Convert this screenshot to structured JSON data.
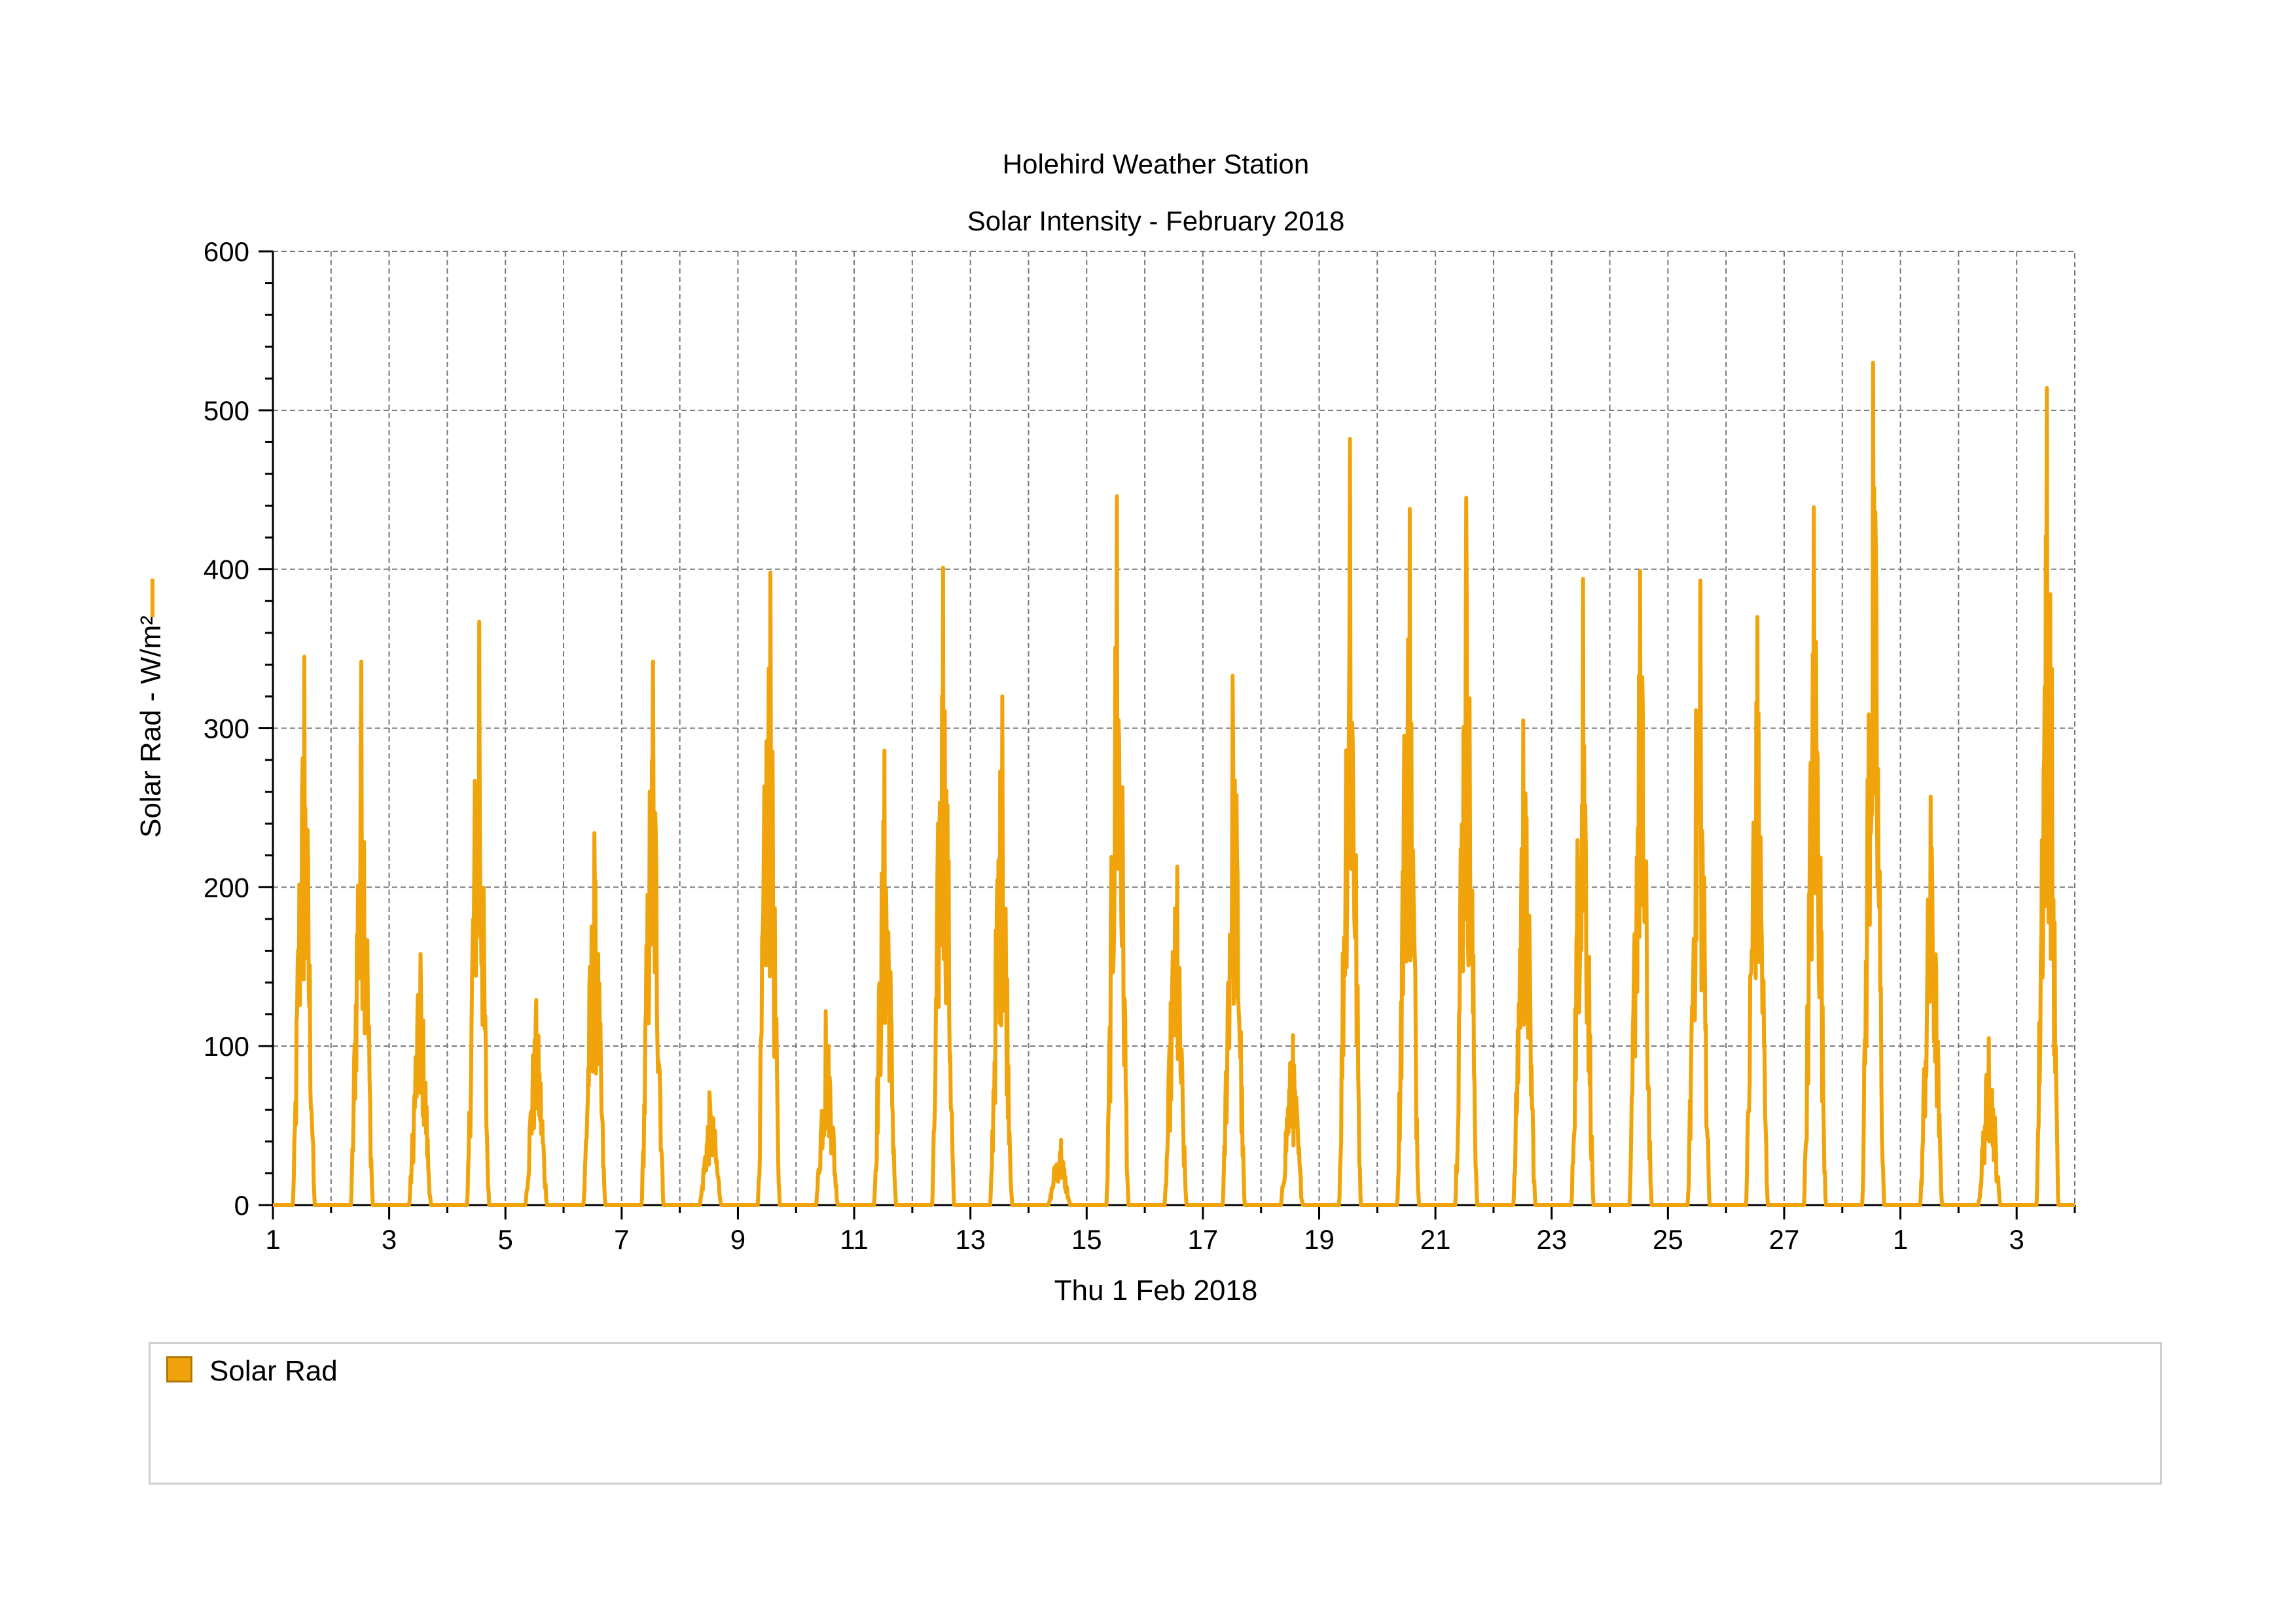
{
  "chart_data": {
    "type": "line",
    "title": "Holehird Weather Station",
    "subtitle": "Solar Intensity - February 2018",
    "xlabel": "Thu 1 Feb 2018",
    "ylabel": "Solar Rad - W/m²",
    "ylim": [
      0,
      600
    ],
    "xlim": [
      "2018-02-01",
      "2018-03-04"
    ],
    "y_ticks": [
      "0",
      "100",
      "200",
      "300",
      "400",
      "500",
      "600"
    ],
    "x_ticks": [
      "1",
      "3",
      "5",
      "7",
      "9",
      "11",
      "13",
      "15",
      "17",
      "19",
      "21",
      "23",
      "25",
      "27",
      "1",
      "3"
    ],
    "grid": true,
    "legend_position": "bottom",
    "series": [
      {
        "name": "Solar Rad",
        "color": "#f0a30a",
        "daily_peaks": [
          {
            "date": "2018-02-01",
            "peak": 345
          },
          {
            "date": "2018-02-02",
            "peak": 342
          },
          {
            "date": "2018-02-03",
            "peak": 158
          },
          {
            "date": "2018-02-04",
            "peak": 367
          },
          {
            "date": "2018-02-05",
            "peak": 129
          },
          {
            "date": "2018-02-06",
            "peak": 234
          },
          {
            "date": "2018-02-07",
            "peak": 342
          },
          {
            "date": "2018-02-08",
            "peak": 71
          },
          {
            "date": "2018-02-09",
            "peak": 398
          },
          {
            "date": "2018-02-10",
            "peak": 122
          },
          {
            "date": "2018-02-11",
            "peak": 286
          },
          {
            "date": "2018-02-12",
            "peak": 401
          },
          {
            "date": "2018-02-13",
            "peak": 320
          },
          {
            "date": "2018-02-14",
            "peak": 41
          },
          {
            "date": "2018-02-15",
            "peak": 446
          },
          {
            "date": "2018-02-16",
            "peak": 213
          },
          {
            "date": "2018-02-17",
            "peak": 333
          },
          {
            "date": "2018-02-18",
            "peak": 107
          },
          {
            "date": "2018-02-19",
            "peak": 482
          },
          {
            "date": "2018-02-20",
            "peak": 438
          },
          {
            "date": "2018-02-21",
            "peak": 445
          },
          {
            "date": "2018-02-22",
            "peak": 305
          },
          {
            "date": "2018-02-23",
            "peak": 394
          },
          {
            "date": "2018-02-24",
            "peak": 399
          },
          {
            "date": "2018-02-25",
            "peak": 393
          },
          {
            "date": "2018-02-26",
            "peak": 370
          },
          {
            "date": "2018-02-27",
            "peak": 439
          },
          {
            "date": "2018-02-28",
            "peak": 530
          },
          {
            "date": "2018-03-01",
            "peak": 257
          },
          {
            "date": "2018-03-02",
            "peak": 105
          },
          {
            "date": "2018-03-03",
            "peak": 514
          }
        ]
      }
    ]
  }
}
